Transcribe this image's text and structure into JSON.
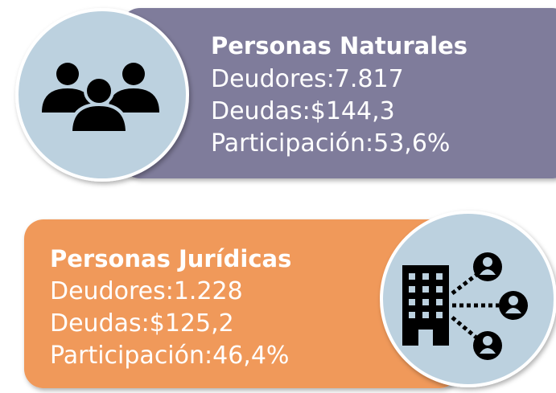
{
  "cards": [
    {
      "title": "Personas Naturales",
      "lines": [
        "Deudores:7.817",
        "Deudas:$144,3",
        "Participación:53,6%"
      ]
    },
    {
      "title": "Personas Jurídicas",
      "lines": [
        "Deudores:1.228",
        "Deudas:$125,2",
        "Participación:46,4%"
      ]
    }
  ]
}
